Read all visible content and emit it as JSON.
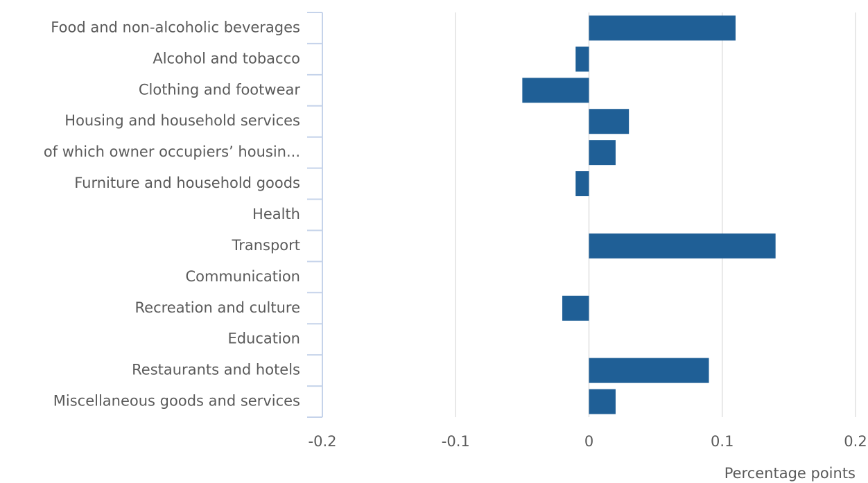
{
  "chart_data": {
    "type": "hbar",
    "categories": [
      "Food and non-alcoholic beverages",
      "Alcohol and tobacco",
      "Clothing and footwear",
      "Housing and household services",
      "of which owner occupiers’ housin...",
      "Furniture and household goods",
      "Health",
      "Transport",
      "Communication",
      "Recreation and culture",
      "Education",
      "Restaurants and hotels",
      "Miscellaneous goods and services"
    ],
    "values": [
      0.11,
      -0.01,
      -0.05,
      0.03,
      0.02,
      -0.01,
      0,
      0.14,
      0,
      -0.02,
      0,
      0.09,
      0.02
    ],
    "color": "#1f5f96",
    "xlim": [
      -0.2,
      0.2
    ],
    "xticks": [
      -0.2,
      -0.1,
      0,
      0.1,
      0.2
    ],
    "xlabel": "Percentage points",
    "grid": true
  }
}
